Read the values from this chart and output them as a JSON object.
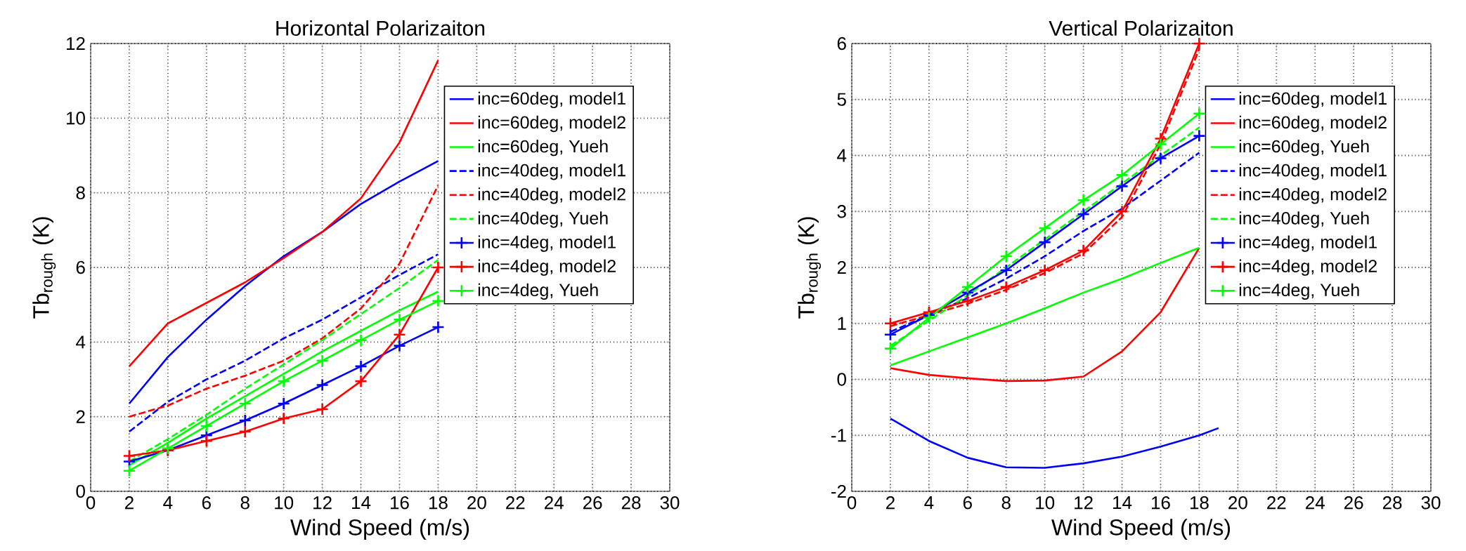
{
  "chart_data": [
    {
      "type": "line",
      "title": "Horizontal Polarizaiton",
      "xlabel": "Wind Speed (m/s)",
      "ylabel": "Tb$_{rough}$ (K)",
      "x": [
        2,
        4,
        6,
        8,
        10,
        12,
        14,
        16,
        18
      ],
      "series": [
        {
          "name": "inc=60deg, model1",
          "color": "#0000ff",
          "line_style": "solid",
          "marker": "none",
          "values": [
            2.35,
            3.6,
            4.6,
            5.5,
            6.3,
            6.95,
            7.7,
            8.3,
            8.85
          ]
        },
        {
          "name": "inc=60deg, model2",
          "color": "#ff0000",
          "line_style": "solid",
          "marker": "none",
          "values": [
            3.35,
            4.5,
            5.05,
            5.6,
            6.25,
            6.95,
            7.85,
            9.35,
            11.55
          ]
        },
        {
          "name": "inc=60deg, Yueh",
          "color": "#00ff00",
          "line_style": "solid",
          "marker": "none",
          "values": [
            0.7,
            1.3,
            1.95,
            2.55,
            3.15,
            3.75,
            4.3,
            4.85,
            5.35
          ]
        },
        {
          "name": "inc=40deg, model1",
          "color": "#0000ff",
          "line_style": "dashed",
          "marker": "none",
          "values": [
            1.6,
            2.4,
            3.0,
            3.5,
            4.1,
            4.6,
            5.2,
            5.8,
            6.35
          ]
        },
        {
          "name": "inc=40deg, model2",
          "color": "#ff0000",
          "line_style": "dashed",
          "marker": "none",
          "values": [
            2.0,
            2.3,
            2.75,
            3.1,
            3.5,
            4.1,
            4.9,
            6.1,
            8.2
          ]
        },
        {
          "name": "inc=40deg, Yueh",
          "color": "#00ff00",
          "line_style": "dashed",
          "marker": "none",
          "values": [
            0.8,
            1.4,
            2.05,
            2.75,
            3.4,
            4.05,
            4.75,
            5.45,
            6.2
          ]
        },
        {
          "name": "inc=4deg, model1",
          "color": "#0000ff",
          "line_style": "solid",
          "marker": "cross",
          "values": [
            0.8,
            1.1,
            1.5,
            1.9,
            2.35,
            2.85,
            3.35,
            3.9,
            4.4
          ]
        },
        {
          "name": "inc=4deg, model2",
          "color": "#ff0000",
          "line_style": "solid",
          "marker": "cross",
          "values": [
            0.95,
            1.1,
            1.35,
            1.6,
            1.95,
            2.2,
            2.95,
            4.2,
            6.0
          ]
        },
        {
          "name": "inc=4deg, Yueh",
          "color": "#00ff00",
          "line_style": "solid",
          "marker": "cross",
          "values": [
            0.55,
            1.15,
            1.75,
            2.35,
            2.95,
            3.5,
            4.05,
            4.6,
            5.1
          ]
        }
      ],
      "xlim": [
        0,
        30
      ],
      "xticks": [
        0,
        2,
        4,
        6,
        8,
        10,
        12,
        14,
        16,
        18,
        20,
        22,
        24,
        26,
        28,
        30
      ],
      "ylim": [
        0,
        12
      ],
      "yticks": [
        0,
        2,
        4,
        6,
        8,
        10,
        12
      ],
      "grid": true,
      "legend": "top right"
    },
    {
      "type": "line",
      "title": "Vertical Polarizaiton",
      "xlabel": "Wind Speed (m/s)",
      "ylabel": "Tb$_{rough}$ (K)",
      "x": [
        2,
        4,
        6,
        8,
        10,
        12,
        14,
        16,
        18
      ],
      "series": [
        {
          "name": "inc=60deg, model1",
          "color": "#0000ff",
          "line_style": "solid",
          "marker": "none",
          "x": [
            2,
            4,
            6,
            8,
            10,
            12,
            14,
            16,
            18,
            19
          ],
          "values": [
            -0.7,
            -1.1,
            -1.4,
            -1.57,
            -1.58,
            -1.5,
            -1.38,
            -1.2,
            -1.0,
            -0.87
          ]
        },
        {
          "name": "inc=60deg, model2",
          "color": "#ff0000",
          "line_style": "solid",
          "marker": "none",
          "values": [
            0.2,
            0.08,
            0.02,
            -0.03,
            -0.02,
            0.05,
            0.5,
            1.2,
            2.35
          ]
        },
        {
          "name": "inc=60deg, Yueh",
          "color": "#00ff00",
          "line_style": "solid",
          "marker": "none",
          "values": [
            0.25,
            0.5,
            0.75,
            1.0,
            1.27,
            1.55,
            1.8,
            2.08,
            2.35
          ]
        },
        {
          "name": "inc=40deg, model1",
          "color": "#0000ff",
          "line_style": "dashed",
          "marker": "none",
          "values": [
            0.85,
            1.15,
            1.45,
            1.8,
            2.2,
            2.65,
            3.05,
            3.55,
            4.05
          ]
        },
        {
          "name": "inc=40deg, model2",
          "color": "#ff0000",
          "line_style": "dashed",
          "marker": "none",
          "values": [
            0.95,
            1.15,
            1.35,
            1.6,
            1.9,
            2.25,
            2.9,
            4.2,
            5.9
          ]
        },
        {
          "name": "inc=40deg, Yueh",
          "color": "#00ff00",
          "line_style": "dashed",
          "marker": "none",
          "values": [
            0.6,
            1.05,
            1.5,
            2.0,
            2.5,
            3.0,
            3.5,
            4.0,
            4.5
          ]
        },
        {
          "name": "inc=4deg, model1",
          "color": "#0000ff",
          "line_style": "solid",
          "marker": "cross",
          "values": [
            0.8,
            1.15,
            1.55,
            1.95,
            2.45,
            2.95,
            3.45,
            3.95,
            4.35
          ]
        },
        {
          "name": "inc=4deg, model2",
          "color": "#ff0000",
          "line_style": "solid",
          "marker": "cross",
          "values": [
            1.0,
            1.2,
            1.4,
            1.65,
            1.95,
            2.3,
            3.0,
            4.3,
            6.0
          ]
        },
        {
          "name": "inc=4deg, Yueh",
          "color": "#00ff00",
          "line_style": "solid",
          "marker": "cross",
          "values": [
            0.55,
            1.1,
            1.65,
            2.2,
            2.7,
            3.2,
            3.65,
            4.2,
            4.75
          ]
        }
      ],
      "xlim": [
        0,
        30
      ],
      "xticks": [
        0,
        2,
        4,
        6,
        8,
        10,
        12,
        14,
        16,
        18,
        20,
        22,
        24,
        26,
        28,
        30
      ],
      "ylim": [
        -2,
        6
      ],
      "yticks": [
        -2,
        -1,
        0,
        1,
        2,
        3,
        4,
        5,
        6
      ],
      "grid": true,
      "legend": "top right"
    }
  ]
}
